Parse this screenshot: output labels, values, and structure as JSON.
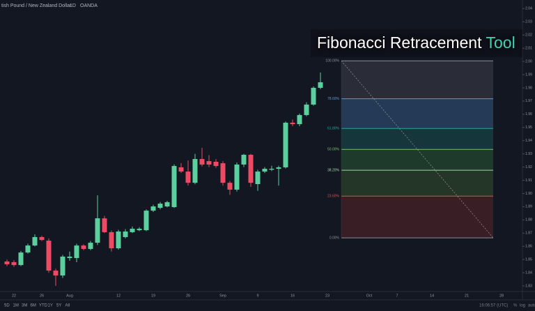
{
  "header": {
    "symbol": "tish Pound / New Zealand Dollar",
    "interval": "1D",
    "exchange": "OANDA"
  },
  "overlay_title": {
    "text": "Fibonacci Retracement",
    "highlight": "Tool"
  },
  "chart_data": {
    "type": "candlestick",
    "categories": [
      null,
      "22",
      null,
      null,
      null,
      "26",
      null,
      null,
      null,
      "Aug",
      null,
      null,
      null,
      null,
      null,
      null,
      "12",
      null,
      null,
      null,
      null,
      "19",
      null,
      null,
      null,
      null,
      "26",
      null,
      null,
      null,
      null,
      "Sep",
      null,
      null,
      null,
      null,
      "9",
      null,
      null,
      null,
      null,
      "16",
      null,
      null,
      null,
      null,
      "23",
      null,
      null,
      null,
      null,
      null,
      "Oct",
      null,
      null,
      null,
      "7",
      null,
      null,
      null,
      null,
      "14",
      null,
      null,
      null,
      null,
      "21",
      null,
      null,
      null,
      null,
      "28",
      null,
      null
    ],
    "open": [
      1.8485,
      1.848,
      1.8458,
      1.8553,
      1.8606,
      1.867,
      1.8643,
      1.8416,
      1.8379,
      1.8511,
      1.8511,
      1.8606,
      1.858,
      1.8627,
      1.8812,
      1.8707,
      1.8585,
      1.867,
      1.8707,
      1.8722,
      1.8722,
      1.887,
      1.8891,
      1.8902,
      1.8897,
      1.9198,
      1.9166,
      1.9081,
      1.9261,
      1.9245,
      1.924,
      1.9229,
      1.9081,
      1.9029,
      1.9219,
      1.9293,
      1.9071,
      1.9166,
      1.918,
      1.9187,
      1.9198,
      1.9536,
      1.9525,
      1.9594,
      1.9673,
      1.98,
      null,
      null,
      null,
      null,
      null,
      null,
      null,
      null,
      null,
      null,
      null,
      null,
      null,
      null,
      null,
      null,
      null,
      null,
      null,
      null,
      null,
      null,
      null,
      null,
      null,
      null,
      null,
      null
    ],
    "high": [
      1.85,
      1.8495,
      1.8565,
      1.862,
      1.869,
      1.868,
      1.866,
      1.843,
      1.8535,
      1.856,
      1.862,
      1.8615,
      1.864,
      1.8986,
      1.883,
      1.872,
      1.8725,
      1.873,
      1.875,
      1.8745,
      1.888,
      1.8915,
      1.8935,
      1.8945,
      1.922,
      1.923,
      1.925,
      1.93,
      1.9345,
      1.929,
      1.926,
      1.9245,
      1.9095,
      1.9235,
      1.93,
      1.93,
      1.918,
      1.92,
      1.921,
      1.921,
      1.9545,
      1.956,
      1.9605,
      1.969,
      1.981,
      1.9916,
      null,
      null,
      null,
      null,
      null,
      null,
      null,
      null,
      null,
      null,
      null,
      null,
      null,
      null,
      null,
      null,
      null,
      null,
      null,
      null,
      null,
      null,
      null,
      null,
      null,
      null,
      null,
      null
    ],
    "low": [
      1.845,
      1.8445,
      1.845,
      1.8545,
      1.86,
      1.864,
      1.84,
      1.83,
      1.836,
      1.849,
      1.848,
      1.857,
      1.857,
      1.861,
      1.87,
      1.856,
      1.8575,
      1.866,
      1.87,
      1.8715,
      1.8715,
      1.886,
      1.888,
      1.8895,
      1.889,
      1.9155,
      1.906,
      1.907,
      1.9205,
      1.92,
      1.9195,
      1.906,
      1.899,
      1.9015,
      1.92,
      1.905,
      1.902,
      1.9155,
      1.917,
      1.906,
      1.919,
      1.951,
      1.951,
      1.9585,
      1.9665,
      1.979,
      null,
      null,
      null,
      null,
      null,
      null,
      null,
      null,
      null,
      null,
      null,
      null,
      null,
      null,
      null,
      null,
      null,
      null,
      null,
      null,
      null,
      null,
      null,
      null,
      null,
      null,
      null,
      null
    ],
    "close": [
      1.8464,
      1.8458,
      1.8553,
      1.8606,
      1.867,
      1.8648,
      1.8416,
      1.8379,
      1.8522,
      1.8522,
      1.8606,
      1.858,
      1.8627,
      1.8812,
      1.8707,
      1.8585,
      1.8712,
      1.8712,
      1.8733,
      1.8733,
      1.887,
      1.8902,
      1.8923,
      1.8934,
      1.9208,
      1.9166,
      1.9081,
      1.9261,
      1.9219,
      1.9219,
      1.9208,
      1.9081,
      1.9029,
      1.9219,
      1.9293,
      1.9081,
      1.9166,
      1.9187,
      1.9187,
      1.9198,
      1.9536,
      1.9525,
      1.9594,
      1.9673,
      1.98,
      1.9842,
      null,
      null,
      null,
      null,
      null,
      null,
      null,
      null,
      null,
      null,
      null,
      null,
      null,
      null,
      null,
      null,
      null,
      null,
      null,
      null,
      null,
      null,
      null,
      null,
      null,
      null,
      null,
      null
    ],
    "up_color": "#5ccf9e",
    "down_color": "#ee4a64",
    "ylim": [
      1.8258,
      2.0465
    ],
    "yticks": [
      1.83,
      1.84,
      1.85,
      1.86,
      1.87,
      1.88,
      1.89,
      {
        "value": 1.9,
        "label": "1.90"
      },
      1.91,
      1.92,
      1.93,
      1.94,
      1.95,
      1.96,
      1.97,
      1.98,
      1.99,
      {
        "value": 2,
        "label": "2.00"
      },
      2.01,
      2.02,
      2.03,
      2.04
    ],
    "fib": {
      "high": 2.0004,
      "low": 1.8664,
      "levels": [
        {
          "value": 100,
          "label": "100.00%",
          "color": "#8a8f99",
          "fill": "#2a2c37"
        },
        {
          "value": 78.6,
          "label": "78.60%",
          "color": "#5b9bd5",
          "fill": "#253a56"
        },
        {
          "value": 61.8,
          "label": "61.80%",
          "color": "#26a69a",
          "fill": "#15363a"
        },
        {
          "value": 50,
          "label": "50.00%",
          "color": "#7cc070",
          "fill": "#1d3a2b"
        },
        {
          "value": 38.2,
          "label": "38.20%",
          "color": "#a5d6a7",
          "fill": "#233627"
        },
        {
          "value": 23.6,
          "label": "23.60%",
          "color": "#e05050",
          "fill": "#3a1e25"
        },
        {
          "value": 0,
          "label": "0.00%",
          "color": "#8a8f99",
          "fill": "#3a1e25"
        }
      ]
    }
  },
  "toolbar": {
    "ranges": [
      "5D",
      "1M",
      "3M",
      "6M",
      "YTD",
      "1Y",
      "5Y",
      "All"
    ],
    "clock": "16:06:57 (UTC)",
    "percent": "%",
    "log": "log",
    "auto": "auto"
  }
}
